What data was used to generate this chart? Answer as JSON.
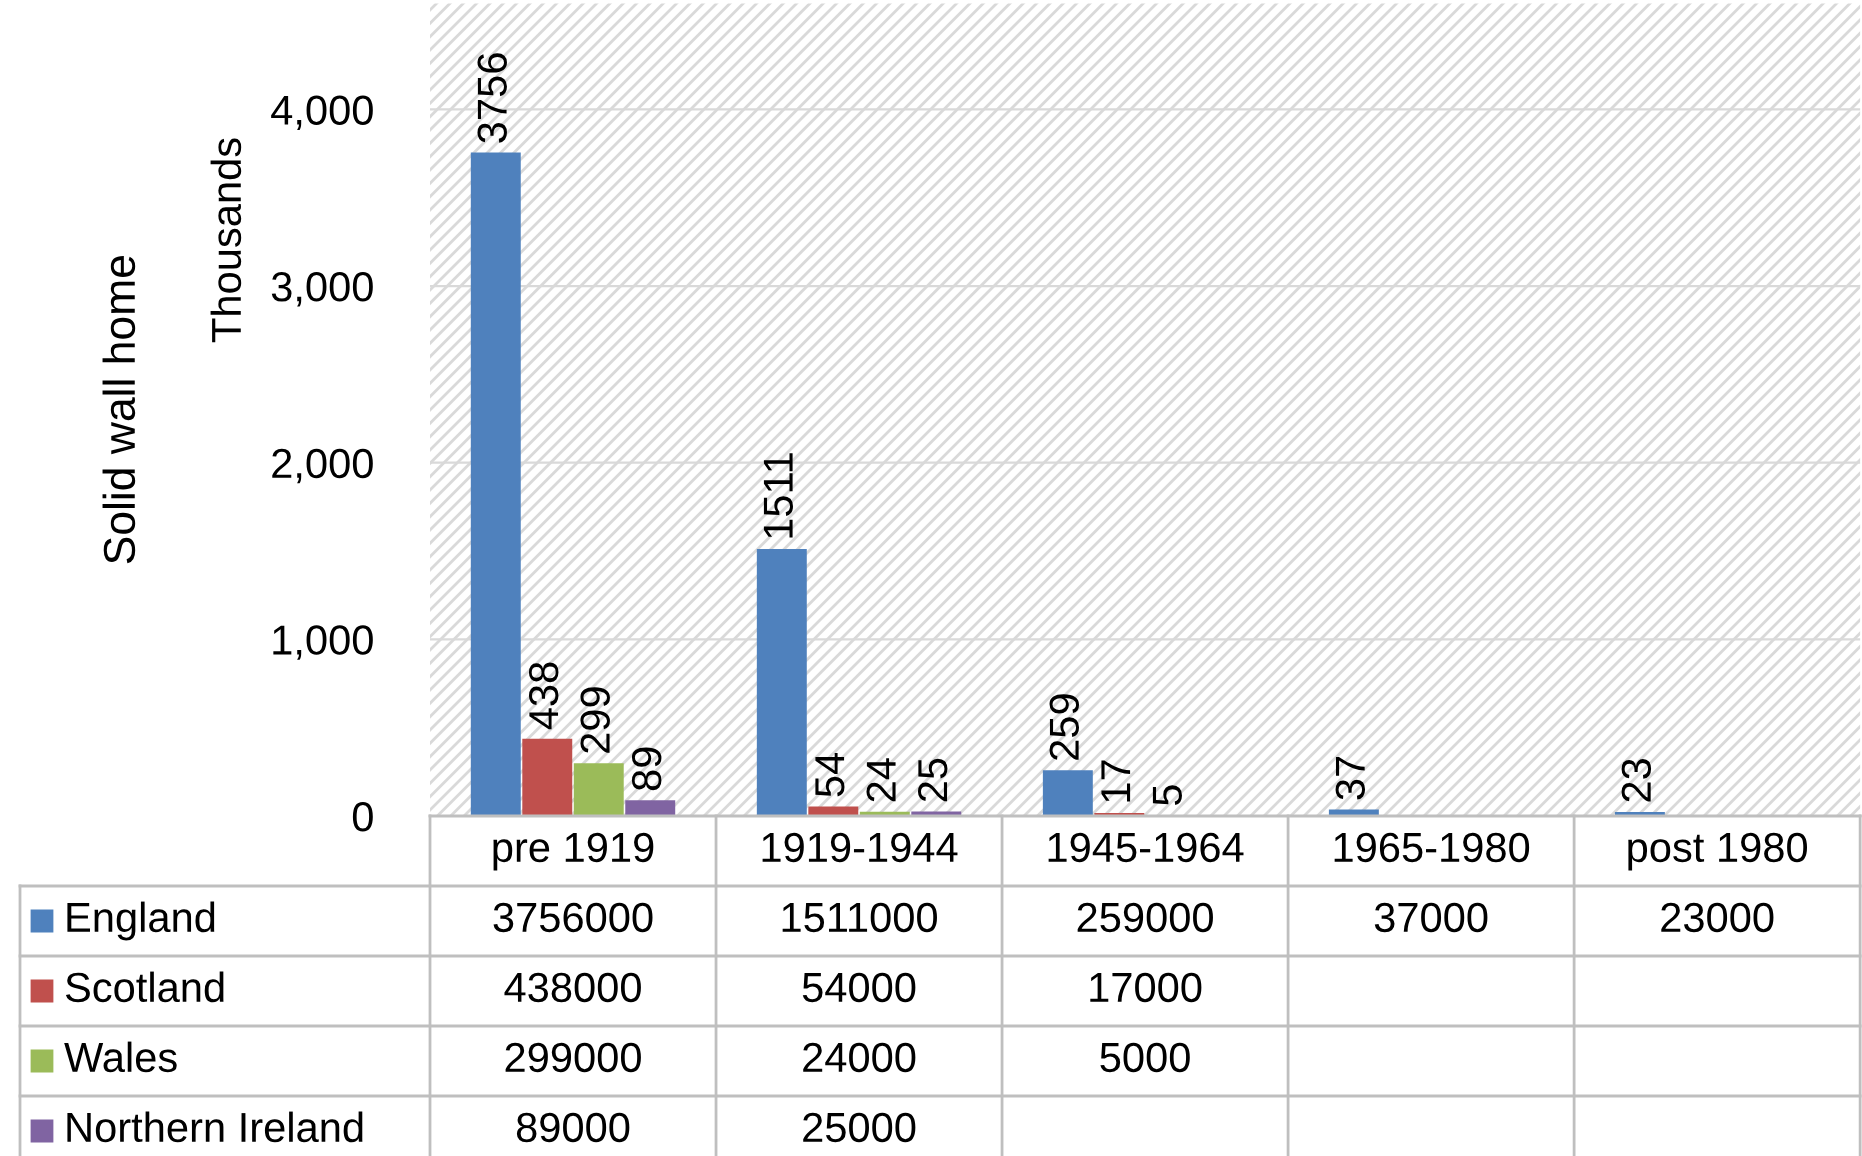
{
  "chart_data": {
    "type": "bar",
    "ylabel": "Solid wall home",
    "annotations": [
      "Thousands",
      "3756000",
      "1511000",
      "259000",
      "37000",
      "23000",
      "438000",
      "54000",
      "17000",
      "299000",
      "24000",
      "5000",
      "89000",
      "25000"
    ],
    "categories": [
      "pre 1919",
      "1919-1944",
      "1945-1964",
      "1965-1980",
      "post 1980"
    ],
    "series": [
      {
        "name": "England",
        "color": "#4f81bd",
        "values": [
          3756,
          1511,
          259,
          37,
          23
        ]
      },
      {
        "name": "Scotland",
        "color": "#c0504d",
        "values": [
          438,
          54,
          17,
          null,
          null
        ]
      },
      {
        "name": "Wales",
        "color": "#9bbb59",
        "values": [
          299,
          24,
          5,
          null,
          null
        ]
      },
      {
        "name": "Northern Ireland",
        "color": "#8064a2",
        "values": [
          89,
          25,
          null,
          null,
          null
        ]
      }
    ],
    "ylim": [
      0,
      4600
    ],
    "yticks": [
      {
        "value": 0,
        "label": "0"
      },
      {
        "value": 1000,
        "label": "1,000"
      },
      {
        "value": 2000,
        "label": "2,000"
      },
      {
        "value": 3000,
        "label": "3,000"
      },
      {
        "value": 4000,
        "label": "4,000"
      }
    ],
    "grid": "y",
    "legend": "bottom",
    "data_labels": true
  }
}
